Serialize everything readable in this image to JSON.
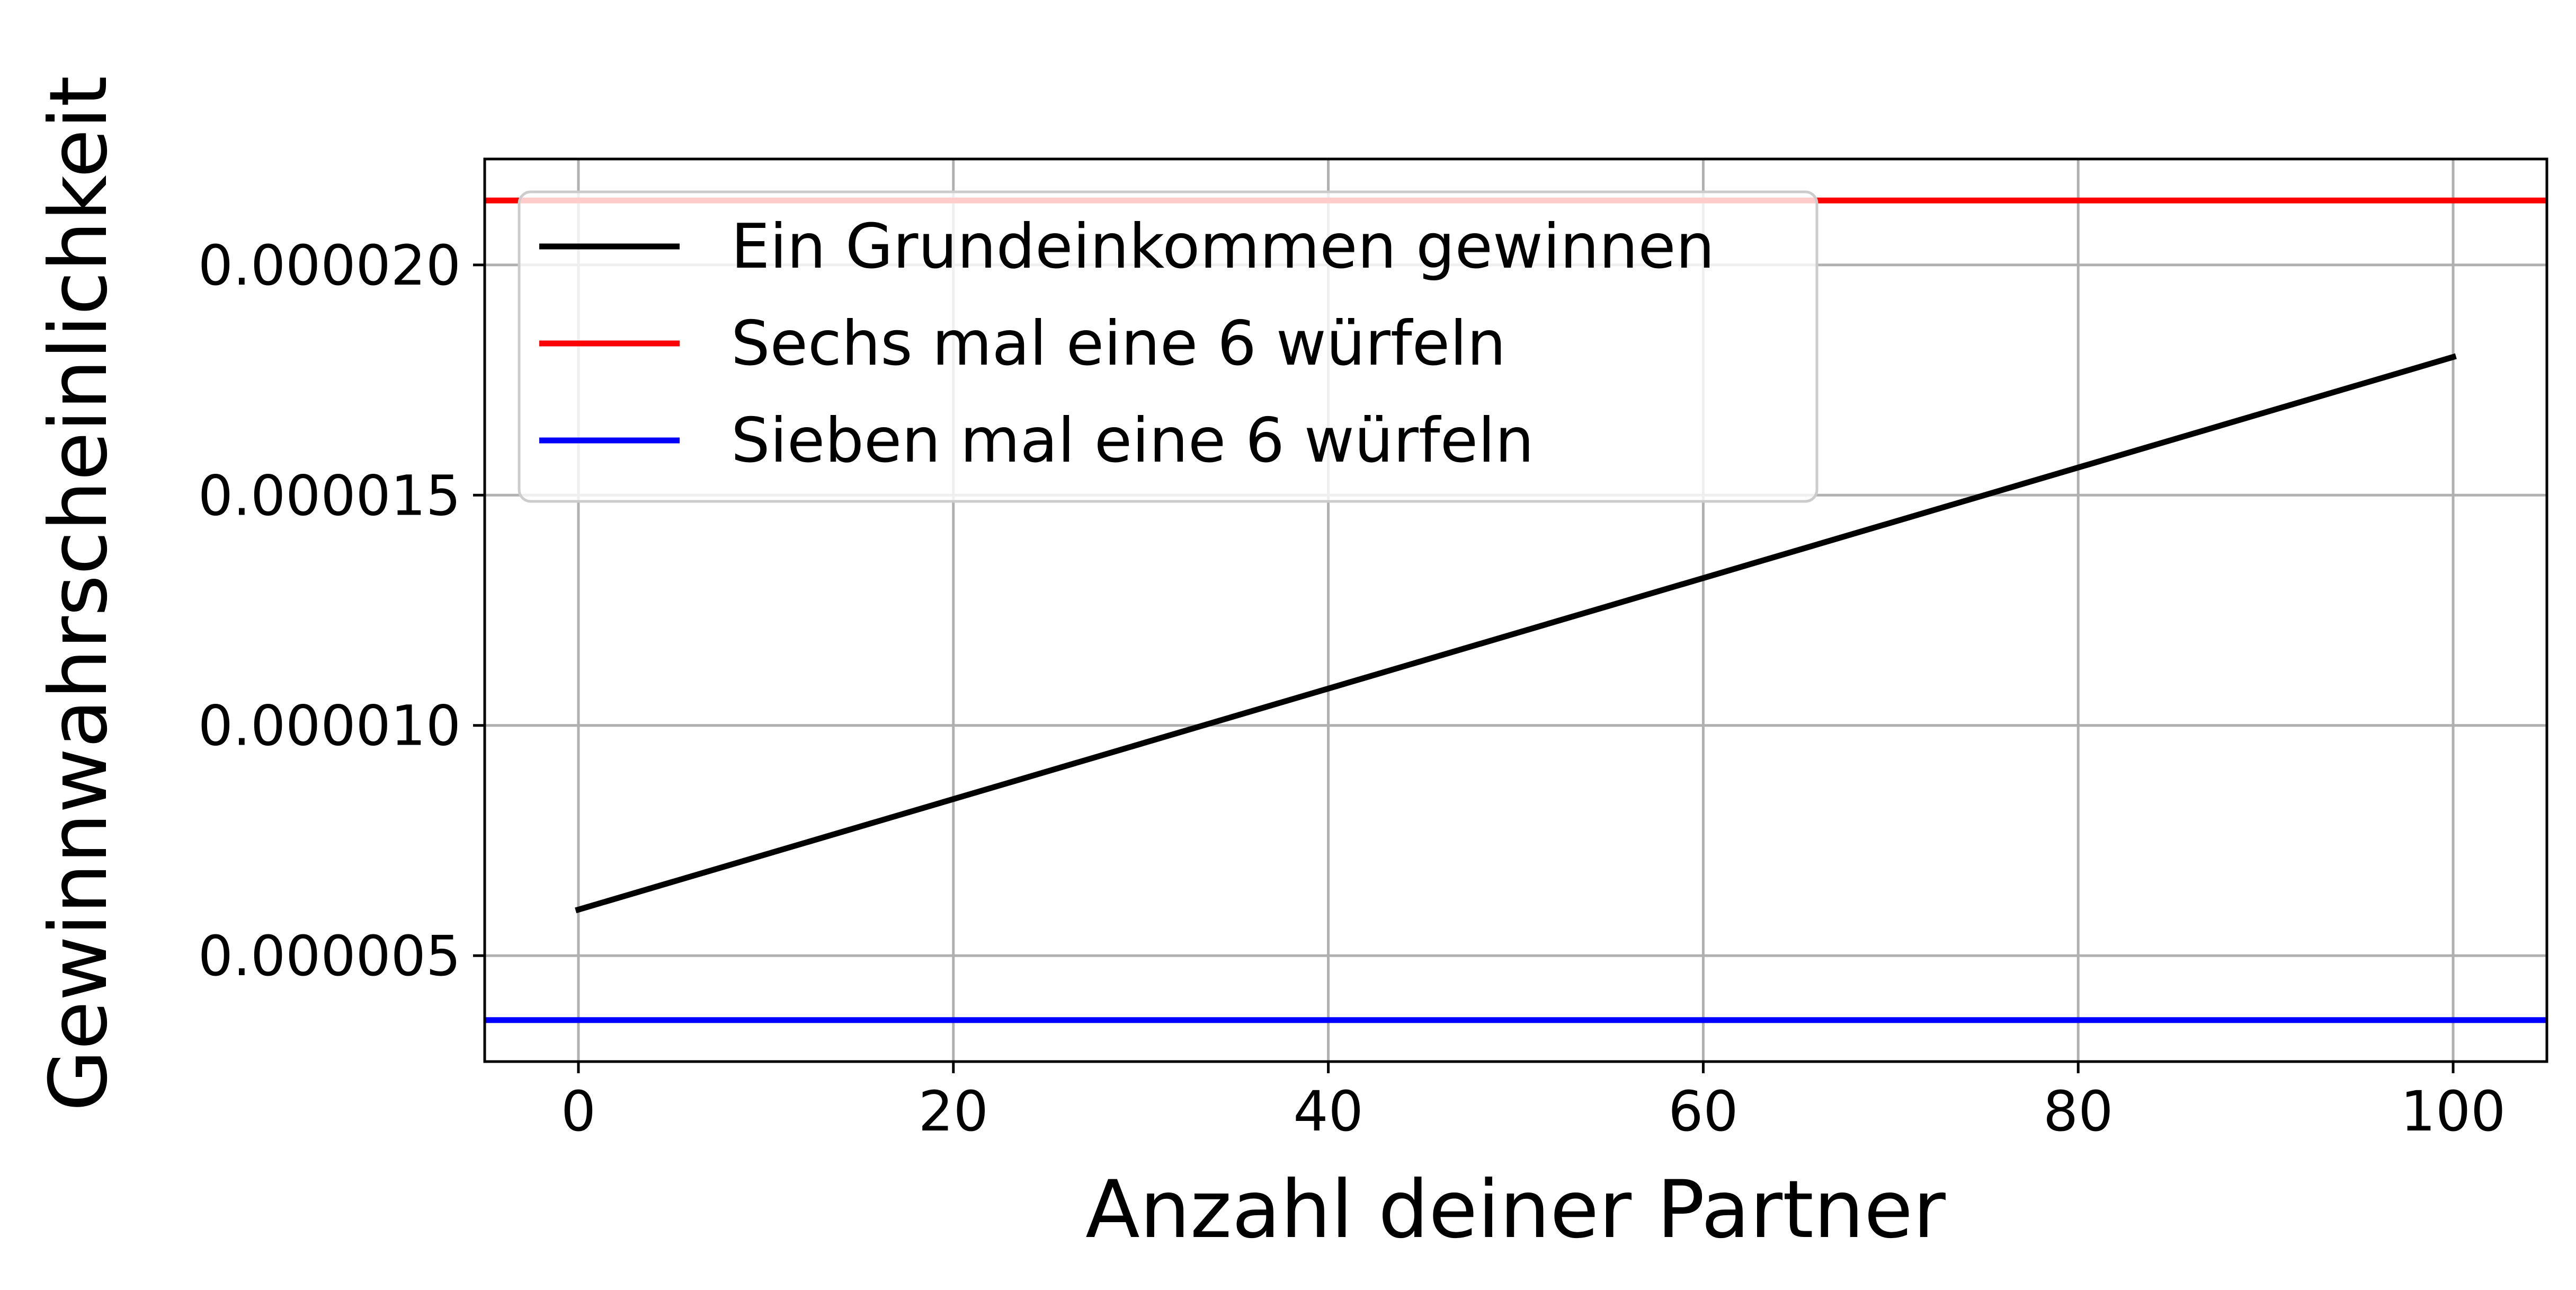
{
  "chart_data": {
    "type": "line",
    "title": "",
    "xlabel": "Anzahl deiner Partner",
    "ylabel": "Gewinnwahrscheinlichkeit",
    "xlim": [
      -5,
      105
    ],
    "ylim": [
      2.7e-06,
      2.23e-05
    ],
    "xticks": [
      0,
      20,
      40,
      60,
      80,
      100
    ],
    "xtick_labels": [
      "0",
      "20",
      "40",
      "60",
      "80",
      "100"
    ],
    "yticks": [
      5e-06,
      1e-05,
      1.5e-05,
      2e-05
    ],
    "ytick_labels": [
      "0.000005",
      "0.000010",
      "0.000015",
      "0.000020"
    ],
    "grid": true,
    "legend_position": "top-left",
    "series": [
      {
        "name": "Ein Grundeinkommen gewinnen",
        "color": "#000000",
        "kind": "line",
        "x": [
          0,
          100
        ],
        "y": [
          6e-06,
          1.8e-05
        ]
      },
      {
        "name": "Sechs mal eine 6 würfeln",
        "color": "#ff0000",
        "kind": "hline",
        "y": 2.14e-05
      },
      {
        "name": "Sieben mal eine 6 würfeln",
        "color": "#0000ff",
        "kind": "hline",
        "y": 3.6e-06
      }
    ]
  }
}
